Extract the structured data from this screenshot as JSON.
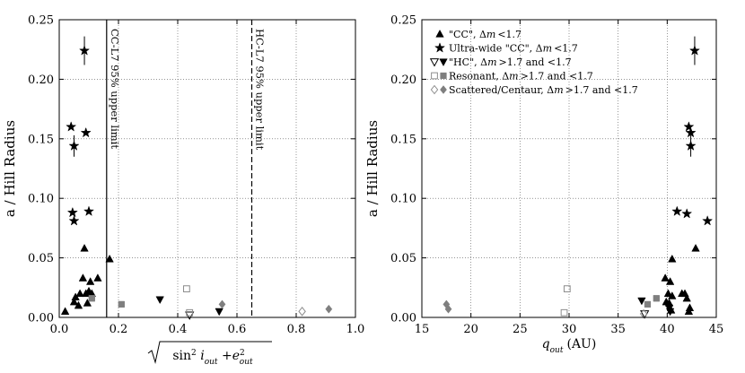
{
  "chart_data": [
    {
      "type": "scatter",
      "title": "",
      "xlabel": "√(sin² i_out + e²_out)",
      "xlabel_parts": {
        "radical": "√",
        "sin": "sin",
        "sin_exp": "2",
        "i": "i",
        "i_sub": "out",
        "plus": "+",
        "e": "e",
        "e_exp": "2",
        "e_sub": "out"
      },
      "ylabel": "a / Hill Radius",
      "xlim": [
        0.0,
        1.0
      ],
      "ylim": [
        0.0,
        0.25
      ],
      "xticks": [
        "0.0",
        "0.2",
        "0.4",
        "0.6",
        "0.8",
        "1.0"
      ],
      "yticks": [
        "0.00",
        "0.05",
        "0.10",
        "0.15",
        "0.20",
        "0.25"
      ],
      "grid": true,
      "reference_lines": [
        {
          "x": 0.16,
          "style": "solid",
          "label": "CC-L7 95% upper limit"
        },
        {
          "x": 0.65,
          "style": "dashed",
          "label": "HC-L7 95% upper limit"
        }
      ],
      "series": [
        {
          "name": "\"CC\", Δm<1.7",
          "marker": "triangle-up",
          "fill": "#000000",
          "points": [
            [
              0.02,
              0.005
            ],
            [
              0.05,
              0.013
            ],
            [
              0.055,
              0.017
            ],
            [
              0.065,
              0.01
            ],
            [
              0.07,
              0.02
            ],
            [
              0.08,
              0.033
            ],
            [
              0.085,
              0.058
            ],
            [
              0.09,
              0.02
            ],
            [
              0.095,
              0.012
            ],
            [
              0.1,
              0.022
            ],
            [
              0.105,
              0.03
            ],
            [
              0.11,
              0.02
            ],
            [
              0.13,
              0.033
            ],
            [
              0.17,
              0.049
            ]
          ]
        },
        {
          "name": "Ultra-wide \"CC\", Δm<1.7",
          "marker": "star",
          "fill": "#000000",
          "points": [
            [
              0.085,
              0.224
            ],
            [
              0.04,
              0.16
            ],
            [
              0.09,
              0.155
            ],
            [
              0.05,
              0.144
            ],
            [
              0.045,
              0.088
            ],
            [
              0.1,
              0.089
            ],
            [
              0.05,
              0.081
            ]
          ]
        },
        {
          "name": "\"HC\", Δm>1.7 and <1.7",
          "marker": "triangle-down",
          "points": [
            [
              0.44,
              0.002,
              "open"
            ],
            [
              0.34,
              0.015,
              "filled"
            ],
            [
              0.54,
              0.005,
              "filled"
            ]
          ]
        },
        {
          "name": "Resonant, Δm>1.7 and <1.7",
          "marker": "square",
          "points": [
            [
              0.43,
              0.024,
              "open"
            ],
            [
              0.44,
              0.004,
              "open"
            ],
            [
              0.21,
              0.011,
              "filled"
            ],
            [
              0.11,
              0.016,
              "filled"
            ]
          ]
        },
        {
          "name": "Scattered/Centaur, Δm>1.7 and <1.7",
          "marker": "diamond",
          "points": [
            [
              0.82,
              0.005,
              "open"
            ],
            [
              0.55,
              0.011,
              "filled"
            ],
            [
              0.91,
              0.007,
              "filled"
            ]
          ]
        }
      ],
      "error_bars": [
        [
          0.085,
          0.224,
          0.012
        ],
        [
          0.05,
          0.144,
          0.009
        ]
      ]
    },
    {
      "type": "scatter",
      "title": "",
      "xlabel": "q_out (AU)",
      "xlabel_parts": {
        "q": "q",
        "q_sub": "out",
        "unit": "(AU)"
      },
      "ylabel": "a / Hill Radius",
      "xlim": [
        15,
        45
      ],
      "ylim": [
        0.0,
        0.25
      ],
      "xticks": [
        "15",
        "20",
        "25",
        "30",
        "35",
        "40",
        "45"
      ],
      "yticks": [
        "0.00",
        "0.05",
        "0.10",
        "0.15",
        "0.20",
        "0.25"
      ],
      "grid": true,
      "legend_position": "top-left",
      "series": [
        {
          "name": "\"CC\", Δm<1.7",
          "marker": "triangle-up",
          "fill": "#000000",
          "points": [
            [
              39.8,
              0.033
            ],
            [
              40.3,
              0.03
            ],
            [
              40.5,
              0.049
            ],
            [
              41.5,
              0.02
            ],
            [
              42.0,
              0.016
            ],
            [
              42.3,
              0.008
            ],
            [
              42.2,
              0.005
            ],
            [
              42.9,
              0.058
            ],
            [
              40.1,
              0.02
            ],
            [
              40.5,
              0.018
            ],
            [
              40.2,
              0.012
            ],
            [
              39.9,
              0.013
            ],
            [
              40.4,
              0.006
            ],
            [
              41.8,
              0.02
            ]
          ]
        },
        {
          "name": "Ultra-wide \"CC\", Δm<1.7",
          "marker": "star",
          "fill": "#000000",
          "points": [
            [
              42.8,
              0.224
            ],
            [
              42.2,
              0.16
            ],
            [
              42.4,
              0.155
            ],
            [
              42.4,
              0.144
            ],
            [
              41.0,
              0.089
            ],
            [
              42.0,
              0.087
            ],
            [
              44.1,
              0.081
            ]
          ]
        },
        {
          "name": "\"HC\", Δm>1.7 and <1.7",
          "marker": "triangle-down",
          "points": [
            [
              37.7,
              0.003,
              "open"
            ],
            [
              37.4,
              0.014,
              "filled"
            ],
            [
              40.3,
              0.005,
              "filled"
            ],
            [
              40.2,
              0.008,
              "filled"
            ]
          ]
        },
        {
          "name": "Resonant, Δm>1.7 and <1.7",
          "marker": "square",
          "points": [
            [
              29.8,
              0.024,
              "open"
            ],
            [
              29.5,
              0.004,
              "open"
            ],
            [
              38.0,
              0.011,
              "filled"
            ],
            [
              38.9,
              0.016,
              "filled"
            ]
          ]
        },
        {
          "name": "Scattered/Centaur, Δm>1.7 and <1.7",
          "marker": "diamond",
          "points": [
            [
              37.6,
              0.003,
              "open"
            ],
            [
              17.5,
              0.011,
              "filled"
            ],
            [
              17.7,
              0.007,
              "filled"
            ]
          ]
        }
      ],
      "error_bars": [
        [
          42.8,
          0.224,
          0.012
        ],
        [
          42.4,
          0.144,
          0.009
        ]
      ],
      "legend": [
        {
          "label": "\"CC\", Δm<1.7",
          "markers": [
            "triangle-up-filled"
          ],
          "parts": [
            "\"CC\",",
            "Δ",
            "m",
            "<1.7"
          ]
        },
        {
          "label": "Ultra-wide \"CC\", Δm<1.7",
          "markers": [
            "star-filled"
          ],
          "parts": [
            "Ultra-wide \"CC\",",
            "Δ",
            "m",
            "<1.7"
          ]
        },
        {
          "label": "\"HC\", Δm>1.7 and <1.7",
          "markers": [
            "triangle-down-open",
            "triangle-down-filled"
          ],
          "parts": [
            "\"HC\",",
            "Δ",
            "m",
            ">1.7 and  <1.7"
          ]
        },
        {
          "label": "Resonant, Δm>1.7 and <1.7",
          "markers": [
            "square-open",
            "square-filled"
          ],
          "parts": [
            "Resonant,",
            "Δ",
            "m",
            ">1.7 and  <1.7"
          ]
        },
        {
          "label": "Scattered/Centaur, Δm>1.7 and <1.7",
          "markers": [
            "diamond-open",
            "diamond-filled"
          ],
          "parts": [
            "Scattered/Centaur,",
            "Δ",
            "m",
            ">1.7 and  <1.7"
          ]
        }
      ]
    }
  ],
  "colors": {
    "filled_black": "#000000",
    "filled_gray": "#7f7f7f",
    "open_gray": "#8c8c8c",
    "grid": "#b0b0b0"
  }
}
